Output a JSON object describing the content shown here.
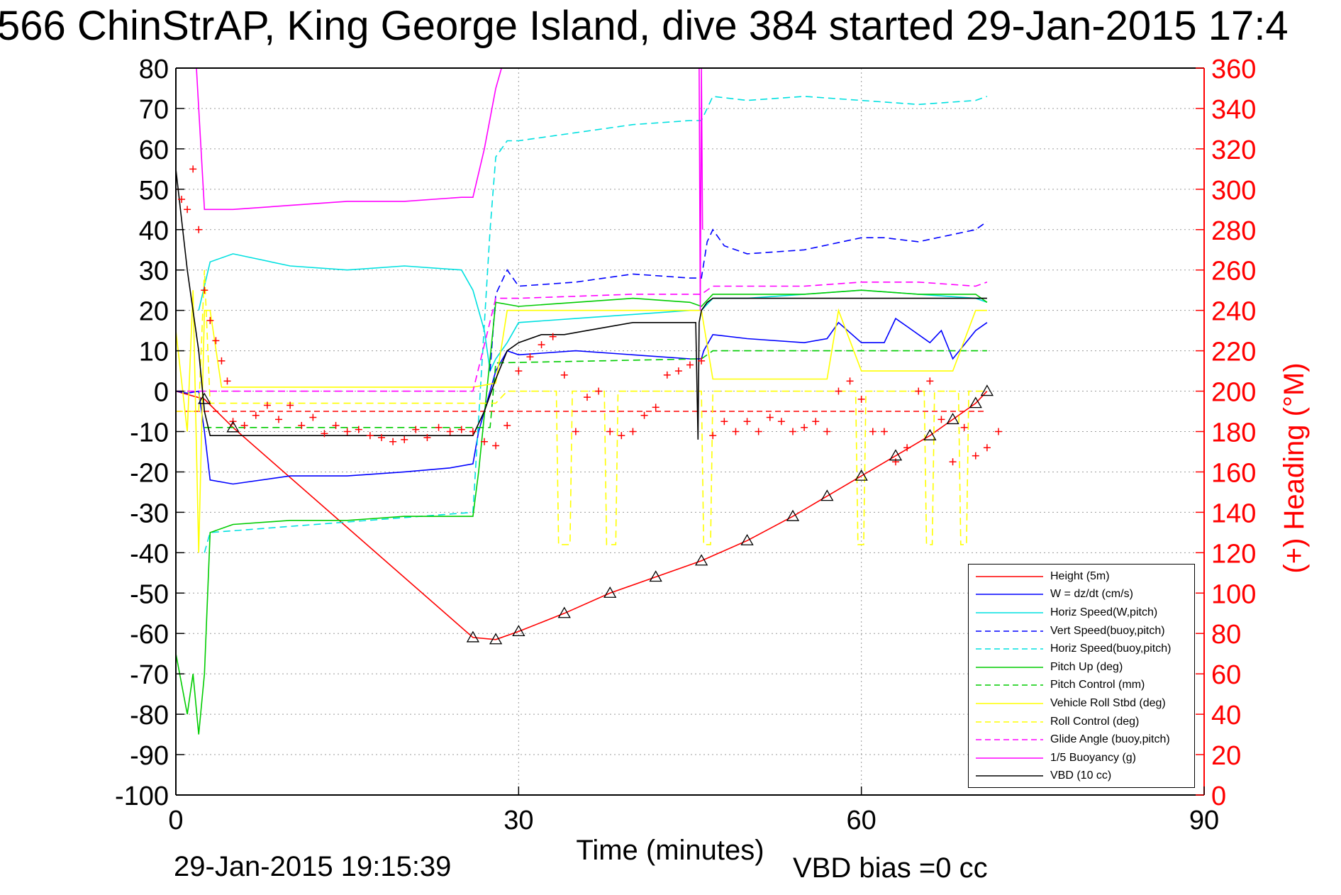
{
  "title": "566 ChinStrAP, King George Island, dive 384 started 29-Jan-2015 17:4",
  "footer": {
    "date": "29-Jan-2015 19:15:39",
    "vbd_bias": "VBD bias =0 cc"
  },
  "chart_data": {
    "type": "line",
    "xlabel": "Time (minutes)",
    "ylabel": "",
    "y2label": "(+) Heading (°M)",
    "xlim": [
      0,
      90
    ],
    "ylim": [
      -100,
      80
    ],
    "y2lim": [
      0,
      360
    ],
    "xticks": [
      0,
      30,
      60,
      90
    ],
    "yticks": [
      80,
      70,
      60,
      50,
      40,
      30,
      20,
      10,
      0,
      -10,
      -20,
      -30,
      -40,
      -50,
      -60,
      -70,
      -80,
      -90,
      -100
    ],
    "y2ticks": [
      360,
      340,
      320,
      300,
      280,
      260,
      240,
      220,
      200,
      180,
      160,
      140,
      120,
      100,
      80,
      60,
      40,
      20,
      0
    ],
    "grid": true,
    "legend_position": "bottom-right",
    "colors": {
      "right_axis": "#ff0000"
    },
    "series": [
      {
        "name": "Height (5m)",
        "color": "#ff0000",
        "style": "solid",
        "x": [
          0,
          2.5,
          5,
          26,
          28,
          30,
          34,
          38,
          42,
          46,
          50,
          54,
          57,
          60,
          63,
          66,
          68,
          70,
          71
        ],
        "y": [
          0,
          -2,
          -9,
          -61,
          -61.5,
          -59.5,
          -55,
          -50,
          -46,
          -42,
          -37,
          -31,
          -26,
          -21,
          -16,
          -11,
          -7,
          -3,
          0
        ]
      },
      {
        "name": "W = dz/dt (cm/s)",
        "color": "#0000ff",
        "style": "solid",
        "x": [
          0,
          1,
          2,
          2.5,
          3,
          5,
          10,
          15,
          20,
          24,
          26,
          26.5,
          28,
          29,
          30,
          35,
          40,
          45,
          46,
          46.2,
          47,
          50,
          55,
          57,
          58,
          60,
          62,
          63,
          64,
          66,
          67,
          68,
          70,
          71
        ],
        "y": [
          0,
          -0.5,
          0,
          -10,
          -22,
          -23,
          -21,
          -21,
          -20,
          -19,
          -18,
          -10,
          5,
          10,
          9,
          10,
          9,
          8,
          8,
          10,
          14,
          13,
          12,
          13,
          17,
          12,
          12,
          18,
          16,
          12,
          15,
          8,
          15,
          17
        ]
      },
      {
        "name": "Horiz Speed(W,pitch)",
        "color": "#00e0e0",
        "style": "solid",
        "x": [
          2,
          3,
          5,
          10,
          15,
          20,
          25,
          26,
          27,
          27.5,
          28,
          29,
          30,
          35,
          40,
          45,
          46,
          47,
          50,
          55,
          60,
          65,
          70,
          71
        ],
        "y": [
          20,
          32,
          34,
          31,
          30,
          31,
          30,
          25,
          15,
          5,
          8,
          12,
          17,
          18,
          19,
          20,
          20,
          23,
          23,
          24,
          25,
          24,
          23,
          22
        ]
      },
      {
        "name": "Vert Speed(buoy,pitch)",
        "color": "#0000ff",
        "style": "dashed",
        "x": [
          27.5,
          28,
          29,
          30,
          35,
          40,
          45,
          46,
          46.5,
          47,
          48,
          50,
          55,
          60,
          62,
          65,
          70,
          71
        ],
        "y": [
          5,
          24,
          30,
          26,
          27,
          29,
          28,
          28,
          37,
          40,
          36,
          34,
          35,
          38,
          38,
          37,
          40,
          42
        ]
      },
      {
        "name": "Horiz Speed(buoy,pitch)",
        "color": "#00e0e0",
        "style": "dashed",
        "x": [
          2.5,
          3,
          26,
          27.5,
          28,
          29,
          30,
          35,
          40,
          45,
          46,
          47,
          50,
          55,
          60,
          65,
          70,
          71
        ],
        "y": [
          -40,
          -35,
          -30,
          40,
          58,
          62,
          62,
          64,
          66,
          67,
          67,
          73,
          72,
          73,
          72,
          71,
          72,
          73
        ]
      },
      {
        "name": "Pitch Up (deg)",
        "color": "#00cc00",
        "style": "solid",
        "x": [
          0,
          1,
          1.5,
          2,
          2.5,
          3,
          5,
          10,
          15,
          20,
          25,
          26,
          26.5,
          28,
          30,
          35,
          40,
          45,
          46,
          47,
          50,
          55,
          60,
          65,
          70,
          71
        ],
        "y": [
          -65,
          -80,
          -70,
          -85,
          -70,
          -35,
          -33,
          -32,
          -32,
          -31,
          -31,
          -31,
          -20,
          22,
          21,
          22,
          23,
          22,
          21,
          24,
          24,
          24,
          25,
          24,
          24,
          22
        ]
      },
      {
        "name": "Pitch Control (mm)",
        "color": "#00cc00",
        "style": "dashed",
        "x": [
          2.5,
          3,
          26,
          27.5,
          28,
          46,
          47,
          71
        ],
        "y": [
          -9,
          -9,
          -9,
          -9,
          7,
          8,
          10,
          10
        ]
      },
      {
        "name": "Vehicle Roll Stbd (deg)",
        "color": "#ffff00",
        "style": "solid",
        "x": [
          0,
          1,
          1.5,
          2,
          2.5,
          3,
          4,
          5,
          10,
          20,
          26,
          28,
          29,
          30,
          40,
          45,
          46,
          47,
          50,
          57,
          58,
          60,
          62,
          65,
          68,
          70,
          71
        ],
        "y": [
          15,
          -10,
          25,
          -40,
          20,
          20,
          1,
          1,
          1,
          1,
          1,
          2,
          20,
          20,
          20,
          20,
          20,
          3,
          3,
          3,
          20,
          5,
          5,
          5,
          5,
          20,
          20
        ]
      },
      {
        "name": "Roll Control (deg)",
        "color": "#ffff00",
        "style": "dashed",
        "x": [
          0,
          2,
          2.5,
          3,
          5,
          26,
          28,
          29,
          32,
          33.3,
          33.5,
          34.5,
          34.7,
          37.5,
          37.7,
          38.5,
          38.7,
          46,
          46.2,
          46.8,
          47,
          55,
          59.5,
          59.7,
          60.2,
          60.4,
          65.5,
          65.7,
          66.2,
          66.4,
          68.5,
          68.7,
          69.2,
          69.4,
          71
        ],
        "y": [
          -5,
          -5,
          30,
          -3,
          -3,
          -3,
          -3,
          0,
          0,
          0,
          -38,
          -38,
          0,
          0,
          -38,
          -38,
          0,
          0,
          -38,
          -38,
          0,
          0,
          0,
          -38,
          -38,
          0,
          0,
          -38,
          -38,
          0,
          0,
          -38,
          -38,
          0,
          0
        ]
      },
      {
        "name": "Glide Angle (buoy,pitch)",
        "color": "#ff00ff",
        "style": "dashed",
        "x": [
          0,
          26,
          28,
          30,
          40,
          46,
          47,
          55,
          60,
          65,
          70,
          71
        ],
        "y": [
          0,
          0,
          23,
          23,
          24,
          24,
          26,
          26,
          27,
          27,
          26,
          27
        ]
      },
      {
        "name": "1/5 Buoyancy (g)",
        "color": "#ff00ff",
        "style": "solid",
        "x": [
          1.8,
          2.5,
          5,
          10,
          15,
          20,
          25,
          26,
          27,
          28,
          28.5,
          45.8,
          45.9,
          46,
          46.1
        ],
        "y": [
          80,
          45,
          45,
          46,
          47,
          47,
          48,
          48,
          60,
          75,
          80,
          80,
          20,
          80,
          40
        ]
      },
      {
        "name": "VBD (10 cc)",
        "color": "#000000",
        "style": "solid",
        "x": [
          0,
          1,
          2,
          2.5,
          3,
          5,
          10,
          15,
          20,
          25,
          26,
          27,
          28,
          29,
          30,
          32,
          34,
          36,
          38,
          40,
          42,
          44,
          45.5,
          45.7,
          45.8,
          46,
          46.5,
          47,
          50,
          55,
          60,
          65,
          70,
          71
        ],
        "y": [
          55,
          30,
          10,
          -5,
          -11,
          -11,
          -11,
          -11,
          -11,
          -11,
          -11,
          -5,
          3,
          10,
          12,
          14,
          14,
          15,
          16,
          17,
          17,
          17,
          17,
          -12,
          17,
          20,
          22,
          23,
          23,
          23,
          23,
          23,
          23,
          23
        ]
      }
    ],
    "heading_series": {
      "name": "(+) Heading (°M)",
      "color": "#ff0000",
      "marker": "+",
      "x": [
        0,
        0.5,
        1,
        1.5,
        2,
        2.5,
        3,
        3.5,
        4,
        4.5,
        5,
        6,
        7,
        8,
        9,
        10,
        11,
        12,
        13,
        14,
        15,
        16,
        17,
        18,
        19,
        20,
        21,
        22,
        23,
        24,
        25,
        26,
        27,
        28,
        29,
        30,
        31,
        32,
        33,
        34,
        35,
        36,
        37,
        38,
        39,
        40,
        41,
        42,
        43,
        44,
        45,
        46,
        47,
        48,
        49,
        50,
        51,
        52,
        53,
        54,
        55,
        56,
        57,
        58,
        59,
        60,
        61,
        62,
        63,
        64,
        65,
        66,
        67,
        68,
        69,
        70,
        71,
        72
      ],
      "y": [
        300,
        295,
        290,
        310,
        280,
        250,
        235,
        225,
        215,
        205,
        185,
        183,
        188,
        193,
        186,
        193,
        183,
        187,
        179,
        183,
        180,
        181,
        178,
        177,
        175,
        176,
        181,
        177,
        182,
        180,
        181,
        180,
        175,
        173,
        183,
        210,
        217,
        223,
        227,
        208,
        180,
        197,
        200,
        180,
        178,
        180,
        188,
        192,
        208,
        210,
        213,
        215,
        178,
        185,
        180,
        185,
        180,
        187,
        185,
        180,
        182,
        185,
        180,
        200,
        205,
        196,
        180,
        180,
        165,
        172,
        200,
        205,
        186,
        165,
        182,
        168,
        172,
        180
      ]
    },
    "legend_entries": [
      "Height (5m)",
      "W = dz/dt (cm/s)",
      "Horiz Speed(W,pitch)",
      "Vert Speed(buoy,pitch)",
      "Horiz Speed(buoy,pitch)",
      "Pitch Up (deg)",
      "Pitch Control (mm)",
      "Vehicle Roll Stbd (deg)",
      "Roll Control (deg)",
      "Glide Angle (buoy,pitch)",
      "1/5 Buoyancy (g)",
      "VBD (10 cc)"
    ],
    "annotations": {
      "target_line_value": -5,
      "target_line_color": "#ff0000"
    }
  }
}
